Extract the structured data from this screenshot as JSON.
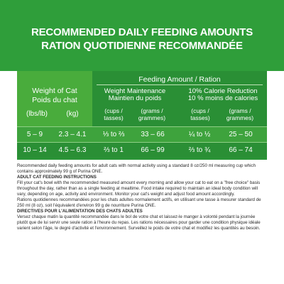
{
  "header": {
    "title_en": "RECOMMENDED DAILY FEEDING AMOUNTS",
    "title_fr": "RATION QUOTIDIENNE RECOMMANDÉE"
  },
  "table": {
    "weight_en": "Weight of Cat",
    "weight_fr": "Poids du chat",
    "unit_lbs": "(lbs/lb)",
    "unit_kg": "(kg)",
    "feeding_amount": "Feeding Amount / Ration",
    "maint_en": "Weight Maintenance",
    "maint_fr": "Maintien du poids",
    "reduc_en": "10% Calorie Reduction",
    "reduc_fr": "10 % moins de calories",
    "cups_a": "(cups /",
    "cups_b": "tasses)",
    "grams_a": "(grams /",
    "grams_b": "grammes)",
    "rows": [
      {
        "lbs": "5 – 9",
        "kg": "2.3 – 4.1",
        "cups1": "⅓ to ⅔",
        "grams1": "33 – 66",
        "cups2": "¼ to ½",
        "grams2": "25 – 50"
      },
      {
        "lbs": "10 – 14",
        "kg": "4.5 – 6.3",
        "cups1": "⅔ to 1",
        "grams1": "66 – 99",
        "cups2": "⅔ to ¾",
        "grams2": "66 – 74"
      }
    ]
  },
  "notes": {
    "p1": "Recommended daily feeding amounts for adult cats with normal activity using a standard 8 oz/250 ml measuring cup which contains approximately 99 g of Purina ONE.",
    "h1": "ADULT CAT FEEDING INSTRUCTIONS",
    "p2": "Fill your cat's bowl with the recommended measured amount every morning and allow your cat to eat on a \"free choice\" basis throughout the day, rather than as a single feeding at mealtime. Food intake required to maintain an ideal body condition will vary, depending on age, activity and environment. Monitor your cat's weight and adjust food amount accordingly.",
    "p3": "Rations quotidiennes recommandées pour les chats adultes normalement actifs, en utilisant une tasse à mesurer standard de 250 ml (8 oz), soit l'équivalent d'environ 99 g de nourriture Purina ONE.",
    "h2": "DIRECTIVES POUR L'ALIMENTATION DES CHATS ADULTES",
    "p4": "Versez chaque matin la quantité recommandée dans le bol de votre chat et laissez-le manger à volonté pendant la journée plutôt que de lui servir une seule ration à l'heure du repas. Les rations nécessaires pour garder une condition physique idéale varient selon l'âge, le degré d'activité et l'environnement. Surveillez le poids de votre chat et modifiez les quantités au besoin."
  },
  "colors": {
    "header_green": "#2f9e3a",
    "light_green": "#49ac3c",
    "dark_green": "#2a8f35"
  }
}
